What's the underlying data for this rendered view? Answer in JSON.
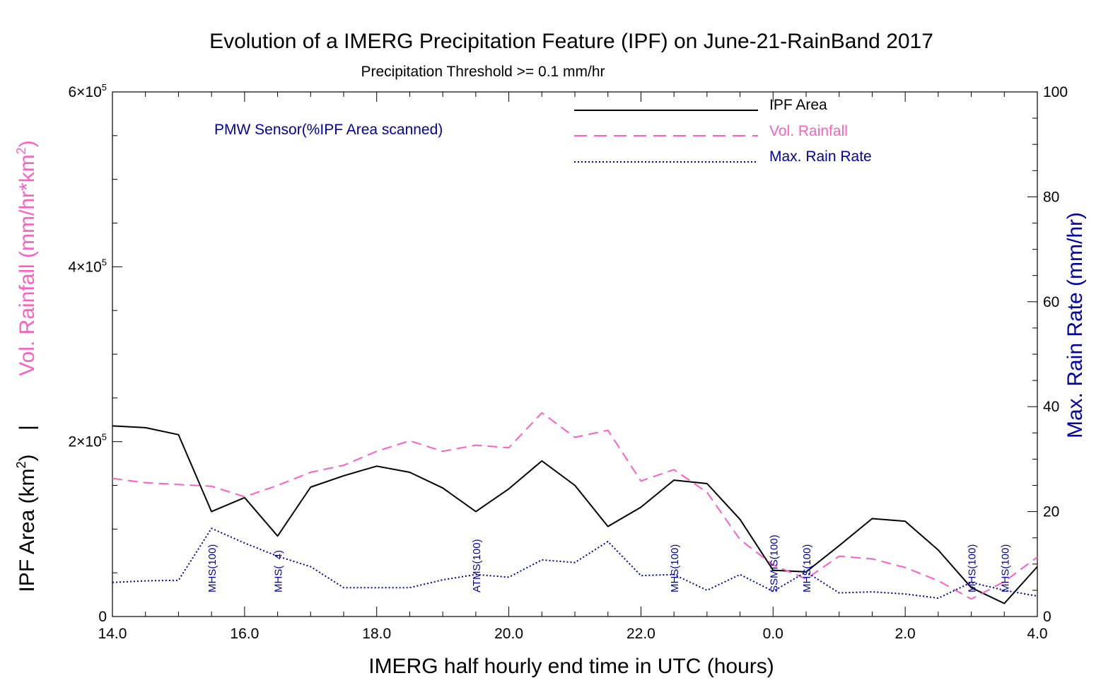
{
  "chart_data": {
    "type": "line",
    "title": "Evolution of a IMERG Precipitation Feature (IPF) on June-21-RainBand 2017",
    "subtitle": "Precipitation Threshold >= 0.1 mm/hr",
    "xlabel": "IMERG half hourly end time in UTC (hours)",
    "ylabel_left_top": "Vol. Rainfall (mm/hr*km",
    "ylabel_left_top_sup": "2",
    "ylabel_left_top_end": ")",
    "ylabel_left_sep": "|",
    "ylabel_left_bottom": "IPF Area (km",
    "ylabel_left_bottom_sup": "2",
    "ylabel_left_bottom_end": ")",
    "ylabel_right": "Max. Rain Rate (mm/hr)",
    "x_ticks": [
      "14.0",
      "16.0",
      "18.0",
      "20.0",
      "22.0",
      "0.0",
      "2.0",
      "4.0"
    ],
    "x_range": [
      14.0,
      28.0
    ],
    "y_left_range": [
      0,
      600000
    ],
    "y_left_ticks": [
      {
        "value": 0,
        "label": "0",
        "sup": ""
      },
      {
        "value": 200000,
        "label": "2×10",
        "sup": "5"
      },
      {
        "value": 400000,
        "label": "4×10",
        "sup": "5"
      },
      {
        "value": 600000,
        "label": "6×10",
        "sup": "5"
      }
    ],
    "y_right_range": [
      0,
      100
    ],
    "y_right_ticks": [
      "0",
      "20",
      "40",
      "60",
      "80",
      "100"
    ],
    "pmw_label": "PMW Sensor(%IPF Area scanned)",
    "legend_position": "top-right",
    "x": [
      14.0,
      14.5,
      15.0,
      15.5,
      16.0,
      16.5,
      17.0,
      17.5,
      18.0,
      18.5,
      19.0,
      19.5,
      20.0,
      20.5,
      21.0,
      21.5,
      22.0,
      22.5,
      23.0,
      23.5,
      24.0,
      24.5,
      25.0,
      25.5,
      26.0,
      26.5,
      27.0,
      27.5,
      28.0
    ],
    "series": [
      {
        "name": "IPF Area",
        "axis": "left",
        "color": "#000000",
        "style": "solid",
        "values": [
          218000,
          216000,
          208000,
          120000,
          136000,
          92000,
          148000,
          161000,
          172000,
          165000,
          147000,
          120000,
          146000,
          178000,
          150000,
          103000,
          125000,
          156000,
          152000,
          111000,
          53000,
          51000,
          81000,
          112000,
          109000,
          76000,
          33000,
          15000,
          57000
        ]
      },
      {
        "name": "Vol. Rainfall",
        "axis": "left",
        "color": "#ff5fbf",
        "style": "dashed",
        "values": [
          158000,
          153000,
          151000,
          149000,
          137000,
          150000,
          165000,
          173000,
          189000,
          201000,
          189000,
          196000,
          193000,
          233000,
          205000,
          213000,
          155000,
          168000,
          142000,
          88000,
          59000,
          43000,
          69000,
          66000,
          56000,
          41000,
          20000,
          40000,
          68000
        ]
      },
      {
        "name": "Max. Rain Rate",
        "axis": "right",
        "color": "#0000aa",
        "style": "dotted",
        "values": [
          6.5,
          6.8,
          6.9,
          16.8,
          14.0,
          11.5,
          9.5,
          5.5,
          5.5,
          5.5,
          7.0,
          8.0,
          7.5,
          10.8,
          10.3,
          14.3,
          7.8,
          8.0,
          5.0,
          8.0,
          4.8,
          8.5,
          4.5,
          4.7,
          4.3,
          3.5,
          6.5,
          5.0,
          3.9
        ]
      }
    ],
    "sensor_annotations": [
      {
        "x": 15.5,
        "label": "MHS(100)"
      },
      {
        "x": 16.5,
        "label": "MHS(  4)"
      },
      {
        "x": 19.5,
        "label": "ATMS(100)"
      },
      {
        "x": 22.5,
        "label": "MHS(100)"
      },
      {
        "x": 24.0,
        "label": "SSMIS(100)"
      },
      {
        "x": 24.5,
        "label": "MHS(100)"
      },
      {
        "x": 27.0,
        "label": "MHS(100)"
      },
      {
        "x": 27.5,
        "label": "MHS(100)"
      }
    ]
  }
}
